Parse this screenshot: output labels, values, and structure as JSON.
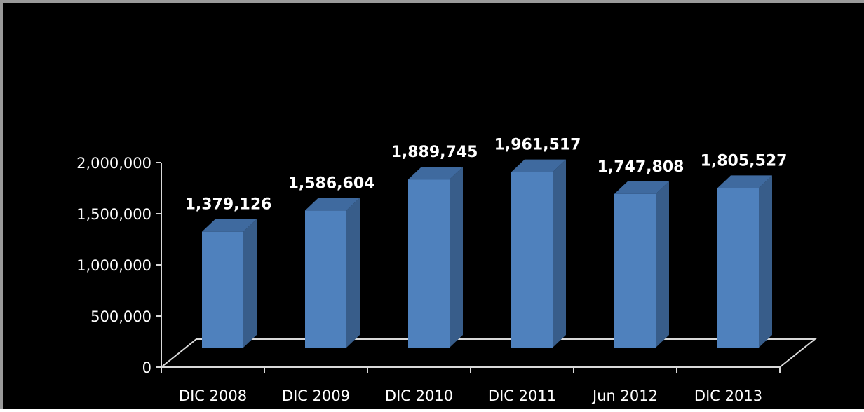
{
  "chart_data": {
    "type": "bar",
    "title": "",
    "xlabel": "",
    "ylabel": "",
    "categories": [
      "DIC 2008",
      "DIC 2009",
      "DIC 2010",
      "DIC 2011",
      "Jun 2012",
      "DIC 2013"
    ],
    "values": [
      1379126,
      1586604,
      1889745,
      1961517,
      1747808,
      1805527
    ],
    "value_labels": [
      "1,379,126",
      "1,586,604",
      "1,889,745",
      "1,961,517",
      "1,747,808",
      "1,805,527"
    ],
    "y_ticks": [
      0,
      500000,
      1000000,
      1500000,
      2000000
    ],
    "y_tick_labels": [
      "0",
      "500,000",
      "1,000,000",
      "1,500,000",
      "2,000,000"
    ],
    "ylim": [
      0,
      2000000
    ],
    "grid": false,
    "legend": "none",
    "style": "3d-column"
  },
  "colors": {
    "background": "#000000",
    "bar_front": "#4f81bd",
    "bar_side": "#385d8a",
    "bar_top": "#3f6a9f",
    "axis": "#d9d9d9",
    "text": "#ffffff"
  }
}
